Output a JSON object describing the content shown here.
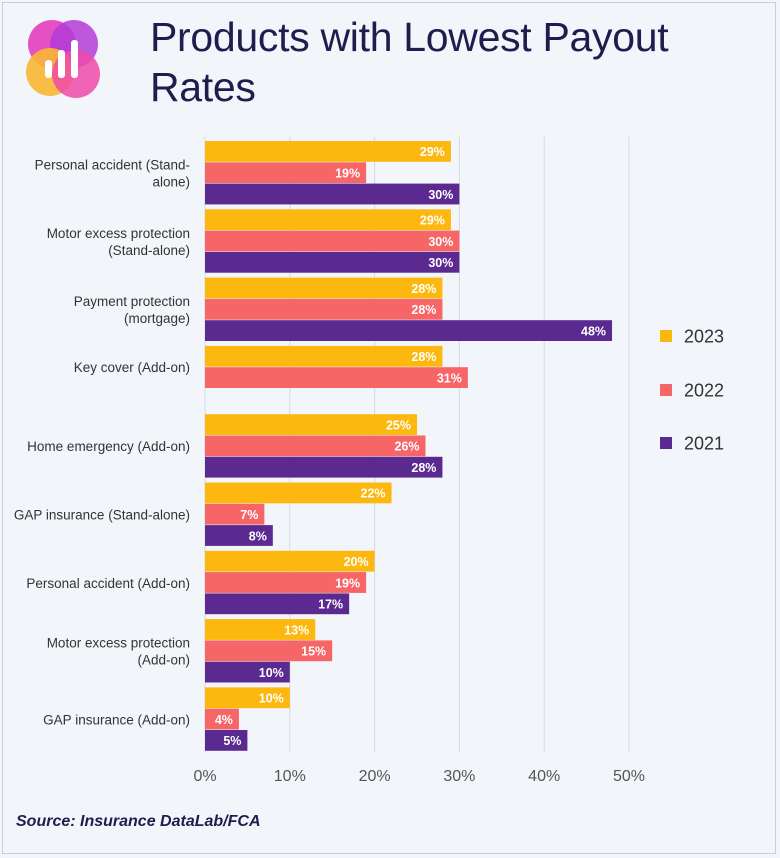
{
  "title": "Products with Lowest Payout Rates",
  "source": "Source: Insurance DataLab/FCA",
  "colors": {
    "2023": "#fcb80f",
    "2022": "#f76667",
    "2021": "#5b2a91",
    "grid": "#d6d9de"
  },
  "chart_data": {
    "type": "bar",
    "orientation": "horizontal",
    "categories": [
      [
        "Personal accident (Stand-",
        "alone)"
      ],
      [
        "Motor excess protection",
        "(Stand-alone)"
      ],
      [
        "Payment protection",
        "(mortgage)"
      ],
      [
        "Key cover (Add-on)"
      ],
      [
        "Home emergency (Add-on)"
      ],
      [
        "GAP insurance (Stand-alone)"
      ],
      [
        "Personal accident (Add-on)"
      ],
      [
        "Motor excess protection",
        "(Add-on)"
      ],
      [
        "GAP insurance (Add-on)"
      ]
    ],
    "series": [
      {
        "name": "2023",
        "values": [
          29,
          29,
          28,
          28,
          25,
          22,
          20,
          13,
          10
        ]
      },
      {
        "name": "2022",
        "values": [
          19,
          30,
          28,
          31,
          26,
          7,
          19,
          15,
          4
        ]
      },
      {
        "name": "2021",
        "values": [
          30,
          30,
          48,
          null,
          28,
          8,
          17,
          10,
          5
        ]
      }
    ],
    "value_suffix": "%",
    "xlim": [
      0,
      50
    ],
    "xticks": [
      "0%",
      "10%",
      "20%",
      "30%",
      "40%",
      "50%"
    ],
    "grid": true,
    "legend_position": "right"
  }
}
